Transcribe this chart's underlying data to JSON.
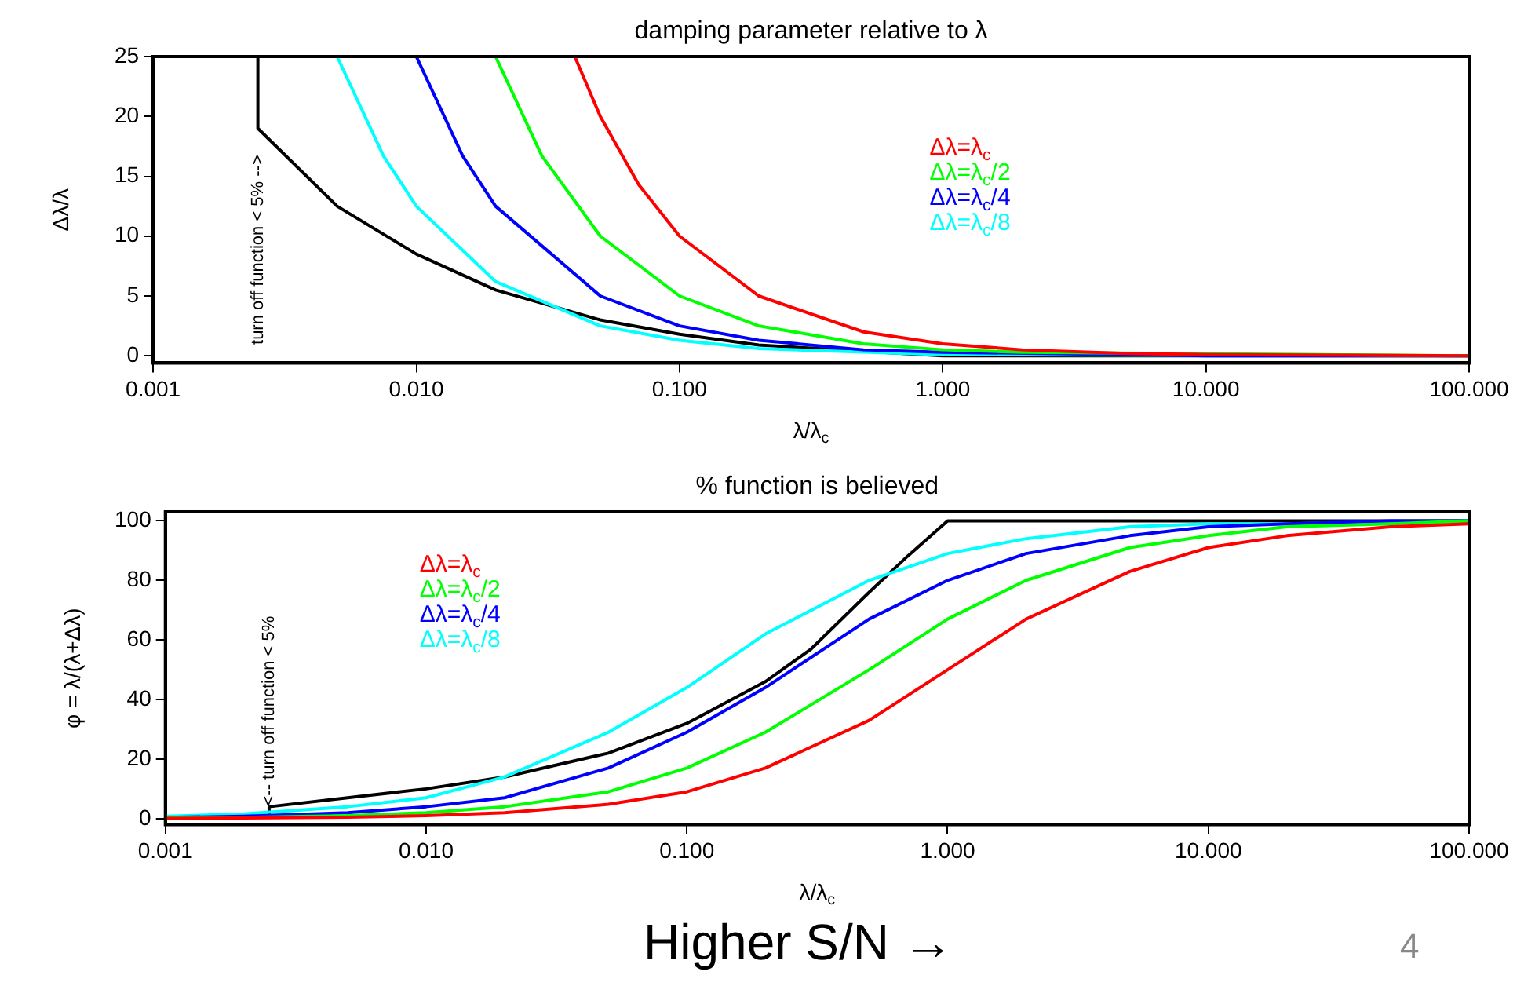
{
  "chart_data": [
    {
      "type": "line",
      "title": "damping parameter relative to λ",
      "xlabel": "λ/λ$_{c}$",
      "ylabel": "Δλ/λ",
      "log": "x",
      "xlim": [
        0.001,
        100
      ],
      "xticks": [
        0.001,
        {
          "value": 0.01,
          "label": "0.010"
        },
        {
          "value": 0.1,
          "label": "0.100"
        },
        {
          "value": 1,
          "label": "1.000"
        },
        {
          "value": 10,
          "label": "10.000"
        },
        {
          "value": 100,
          "label": "100.000"
        }
      ],
      "ylim": [
        -0.6,
        25
      ],
      "yticks": [
        0,
        5,
        10,
        15,
        20,
        25
      ],
      "grid": false,
      "legend": "top",
      "annotations": [
        "turn off function < 5% -->"
      ],
      "series": [
        {
          "name": "Δλ=λ$_{c}$",
          "color": "#ff0000",
          "x": [
            0.04,
            0.05,
            0.07,
            0.1,
            0.2,
            0.5,
            1,
            2,
            5,
            10,
            100
          ],
          "values": [
            25,
            20,
            14.3,
            10,
            5,
            2,
            1,
            0.5,
            0.2,
            0.1,
            0
          ]
        },
        {
          "name": "Δλ=λ$_{c}$/2",
          "color": "#00ff00",
          "x": [
            0.02,
            0.03,
            0.05,
            0.1,
            0.2,
            0.5,
            1,
            2,
            10,
            100
          ],
          "values": [
            25,
            16.7,
            10,
            5,
            2.5,
            1,
            0.5,
            0.3,
            null,
            0
          ]
        },
        {
          "name": "Δλ=λ$_{c}$/4",
          "color": "#0000ff",
          "x": [
            0.01,
            0.015,
            0.02,
            0.05,
            0.1,
            0.2,
            0.5,
            1,
            10,
            100
          ],
          "values": [
            25,
            16.7,
            12.5,
            5,
            2.5,
            1.3,
            0.5,
            0.3,
            0,
            0
          ]
        },
        {
          "name": "Δλ=λ$_{c}$/8",
          "color": "#00ffff",
          "x": [
            0.005,
            0.0075,
            0.01,
            0.02,
            0.05,
            0.1,
            0.2,
            1,
            100
          ],
          "values": [
            25,
            16.7,
            12.5,
            6.2,
            2.5,
            1.3,
            0.6,
            0.1,
            0
          ]
        },
        {
          "color": "#000000",
          "x": [
            0.0025,
            0.0025,
            0.005,
            0.01,
            0.02,
            0.05,
            0.1,
            0.2,
            0.5,
            1,
            100
          ],
          "values": [
            25,
            19,
            12.5,
            8.5,
            5.5,
            3,
            1.8,
            0.9,
            null,
            0,
            0
          ]
        }
      ]
    },
    {
      "type": "line",
      "title": "% function is believed",
      "xlabel": "λ/λ$_{c}$",
      "ylabel": "φ = λ/(λ+Δλ)",
      "log": "x",
      "xlim": [
        0.001,
        100
      ],
      "xticks": [
        0.001,
        {
          "value": 0.01,
          "label": "0.010"
        },
        {
          "value": 0.1,
          "label": "0.100"
        },
        {
          "value": 1,
          "label": "1.000"
        },
        {
          "value": 10,
          "label": "10.000"
        },
        {
          "value": 100,
          "label": "100.000"
        }
      ],
      "ylim": [
        -2,
        103
      ],
      "yticks": [
        0,
        20,
        40,
        60,
        80,
        100
      ],
      "grid": false,
      "legend": "top left",
      "annotations": [
        "<-- turn off function < 5%",
        "Higher S/N →",
        "4"
      ],
      "series": [
        {
          "name": "Δλ=λ$_{c}$",
          "color": "#ff0000",
          "x": [
            0.001,
            0.002,
            0.005,
            0.01,
            0.02,
            0.05,
            0.1,
            0.2,
            0.5,
            1,
            2,
            5,
            10,
            20,
            50,
            100
          ],
          "values": [
            0.1,
            0.2,
            0.5,
            1,
            2,
            4.8,
            9,
            17,
            33,
            50,
            67,
            83,
            91,
            95,
            98,
            99
          ]
        },
        {
          "name": "Δλ=λ$_{c}$/2",
          "color": "#00ff00",
          "x": [
            0.001,
            0.002,
            0.005,
            0.01,
            0.02,
            0.05,
            0.1,
            0.2,
            0.5,
            1,
            2,
            5,
            10,
            20,
            50,
            100
          ],
          "values": [
            0.2,
            0.4,
            1,
            2,
            4,
            9,
            17,
            29,
            50,
            67,
            80,
            91,
            95,
            98,
            99,
            100
          ]
        },
        {
          "name": "Δλ=λ$_{c}$/4",
          "color": "#0000ff",
          "x": [
            0.001,
            0.002,
            0.005,
            0.01,
            0.02,
            0.05,
            0.1,
            0.2,
            0.5,
            1,
            2,
            5,
            10,
            20,
            50,
            100
          ],
          "values": [
            0.4,
            0.8,
            2,
            4,
            7,
            17,
            29,
            44,
            67,
            80,
            89,
            95,
            98,
            99,
            100,
            100
          ]
        },
        {
          "name": "Δλ=λ$_{c}$/8",
          "color": "#00ffff",
          "x": [
            0.001,
            0.002,
            0.005,
            0.01,
            0.02,
            0.05,
            0.1,
            0.2,
            0.5,
            1,
            2,
            5,
            10,
            20,
            50,
            100
          ],
          "values": [
            0.8,
            1.6,
            4,
            7,
            14,
            29,
            44,
            62,
            80,
            89,
            94,
            98,
            99,
            99,
            null,
            100
          ]
        },
        {
          "color": "#000000",
          "x": [
            0.0025,
            0.0025,
            0.005,
            0.01,
            0.02,
            0.05,
            0.1,
            0.2,
            0.3,
            0.5,
            0.7,
            1,
            100
          ],
          "values": [
            0,
            4,
            7,
            10,
            14,
            22,
            32,
            46,
            57,
            76,
            88,
            100,
            100
          ]
        }
      ]
    }
  ]
}
